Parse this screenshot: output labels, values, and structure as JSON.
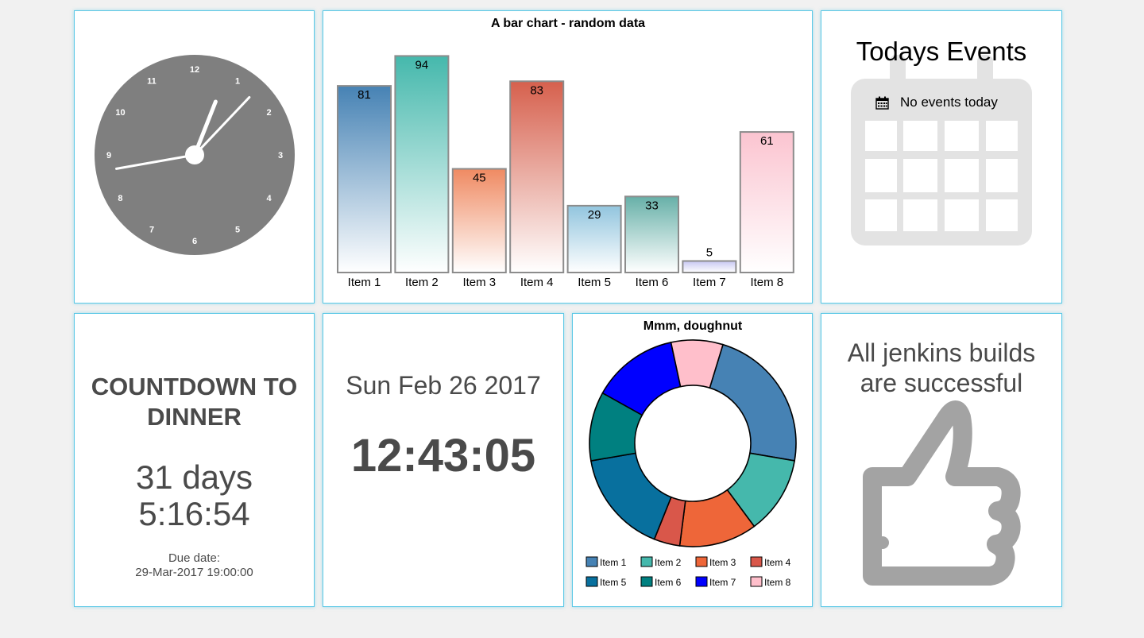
{
  "clock": {
    "numbers": [
      "12",
      "1",
      "2",
      "3",
      "4",
      "5",
      "6",
      "7",
      "8",
      "9",
      "10",
      "11"
    ],
    "time": {
      "hours": 12,
      "minutes": 43,
      "seconds": 5
    },
    "face_color": "#7f7f7f"
  },
  "chart_data": [
    {
      "type": "bar",
      "title": "A bar chart - random data",
      "categories": [
        "Item 1",
        "Item 2",
        "Item 3",
        "Item 4",
        "Item 5",
        "Item 6",
        "Item 7",
        "Item 8"
      ],
      "values": [
        81,
        94,
        45,
        83,
        29,
        33,
        5,
        61
      ],
      "colors": [
        "#4682b4",
        "#45b8ac",
        "#ef8a62",
        "#d6604d",
        "#92c5de",
        "#67b0a8",
        "#c6c6f2",
        "#fbc4d0"
      ],
      "ylim": [
        0,
        100
      ],
      "grid": false
    },
    {
      "type": "pie",
      "title": "Mmm, doughnut",
      "categories": [
        "Item 1",
        "Item 2",
        "Item 3",
        "Item 4",
        "Item 5",
        "Item 6",
        "Item 7",
        "Item 8"
      ],
      "values": [
        17,
        9,
        9,
        3,
        12,
        8,
        10,
        6
      ],
      "colors": [
        "#4682b4",
        "#45b8ac",
        "#ee6639",
        "#d9574a",
        "#08709e",
        "#008080",
        "#0000ff",
        "#ffbfcb"
      ],
      "legend": "bottom"
    }
  ],
  "events": {
    "title": "Todays Events",
    "empty_text": "No events today"
  },
  "countdown": {
    "title": "COUNTDOWN TO DINNER",
    "days": "31 days",
    "remaining": "5:16:54",
    "due_label": "Due date:",
    "due_value": "29-Mar-2017 19:00:00"
  },
  "datetime": {
    "date": "Sun Feb 26 2017",
    "time": "12:43:05"
  },
  "jenkins": {
    "message": "All jenkins builds are successful"
  }
}
